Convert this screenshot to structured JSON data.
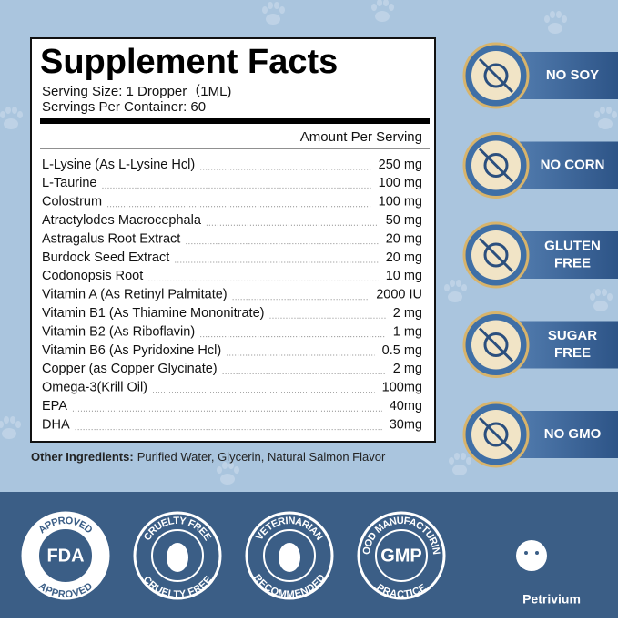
{
  "panel": {
    "title": "Supplement Facts",
    "serving_size": "Serving Size: 1 Dropper（1ML)",
    "servings_per_container": "Servings Per Container: 60",
    "amount_header": "Amount Per Serving",
    "rows": [
      [
        "L-Lysine (As L-Lysine Hcl)",
        "250 mg"
      ],
      [
        "L-Taurine",
        "100 mg"
      ],
      [
        "Colostrum",
        "100 mg"
      ],
      [
        "Atractylodes Macrocephala",
        "50 mg"
      ],
      [
        "Astragalus Root Extract",
        "20 mg"
      ],
      [
        "Burdock Seed Extract",
        "20 mg"
      ],
      [
        "Codonopsis Root",
        "10 mg"
      ],
      [
        "Vitamin A (As Retinyl Palmitate)",
        "2000 IU"
      ],
      [
        "Vitamin B1 (As Thiamine Mononitrate)",
        "2 mg"
      ],
      [
        "Vitamin B2 (As Riboflavin)",
        "1 mg"
      ],
      [
        "Vitamin B6 (As Pyridoxine Hcl)",
        "0.5 mg"
      ],
      [
        "Copper (as Copper Glycinate)",
        "2 mg"
      ],
      [
        "Omega-3(Krill Oil)",
        "100mg"
      ],
      [
        "EPA",
        "40mg"
      ],
      [
        "DHA",
        "30mg"
      ]
    ],
    "other_ingredients_label": "Other Ingredients:",
    "other_ingredients": "Purified Water, Glycerin, Natural Salmon Flavor"
  },
  "side_badges": [
    [
      "NO SOY"
    ],
    [
      "NO CORN"
    ],
    [
      "GLUTEN",
      "FREE"
    ],
    [
      "SUGAR",
      "FREE"
    ],
    [
      "NO GMO"
    ]
  ],
  "bottom_badges": [
    {
      "top": "APPROVED",
      "center": "FDA",
      "bottom": "APPROVED"
    },
    {
      "top": "CRUELTY FREE",
      "bottom": "CRUELTY FREE"
    },
    {
      "top": "VETERINARIAN",
      "bottom": "RECOMMENDED"
    },
    {
      "top": "GOOD MANUFACTURING",
      "center": "GMP",
      "bottom": "PRACTICE"
    }
  ],
  "brand": "Petrivium"
}
